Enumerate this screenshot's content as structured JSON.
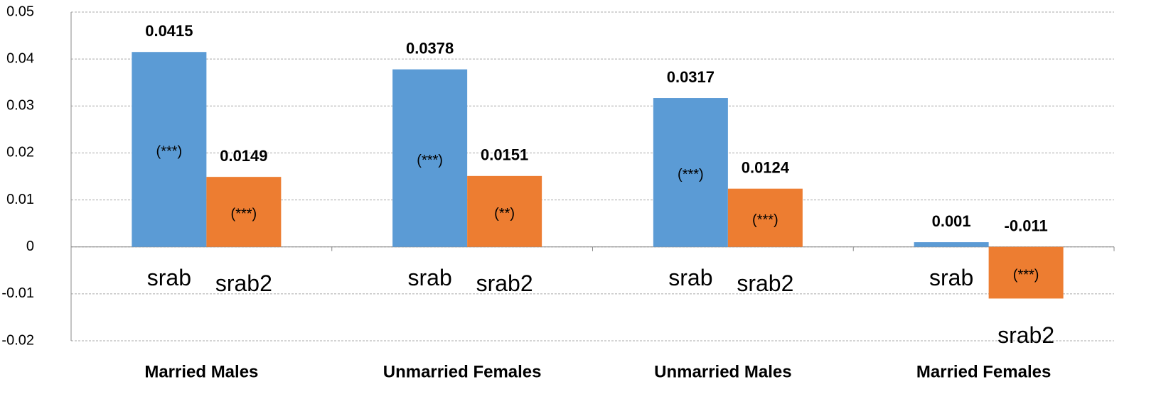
{
  "chart_data": {
    "type": "bar",
    "categories": [
      "Married Males",
      "Unmarried Females",
      "Unmarried Males",
      "Married Females"
    ],
    "series": [
      {
        "name": "srab",
        "color": "#5b9bd5",
        "values": [
          0.0415,
          0.0378,
          0.0317,
          0.001
        ],
        "annotations": [
          "(***)",
          "(***)",
          "(***)",
          null
        ]
      },
      {
        "name": "srab2",
        "color": "#ed7d31",
        "values": [
          0.0149,
          0.0151,
          0.0124,
          -0.011
        ],
        "annotations": [
          "(***)",
          "(**)",
          "(***)",
          "(***)"
        ]
      }
    ],
    "ylim": [
      -0.02,
      0.05
    ],
    "yticks": [
      -0.02,
      -0.01,
      0,
      0.01,
      0.02,
      0.03,
      0.04,
      0.05
    ],
    "grid": true
  }
}
